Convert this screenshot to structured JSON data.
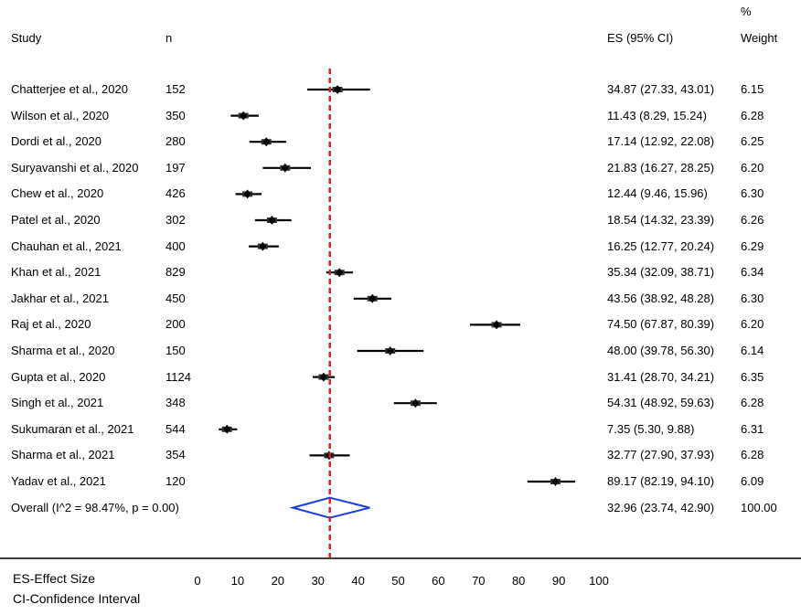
{
  "headers": {
    "study": "Study",
    "n": "n",
    "es": "ES (95% CI)",
    "weight_top": "%",
    "weight": "Weight"
  },
  "chart_data": {
    "type": "forest",
    "xlim": [
      0,
      100
    ],
    "x_ticks": [
      "0",
      "10",
      "20",
      "30",
      "40",
      "50",
      "60",
      "70",
      "80",
      "90",
      "100"
    ],
    "reference_line": 32.96,
    "studies": [
      {
        "label": "Chatterjee et al., 2020",
        "n": "152",
        "es": 34.87,
        "lo": 27.33,
        "hi": 43.01,
        "es_text": "34.87 (27.33, 43.01)",
        "weight": "6.15"
      },
      {
        "label": "Wilson et al., 2020",
        "n": "350",
        "es": 11.43,
        "lo": 8.29,
        "hi": 15.24,
        "es_text": "11.43 (8.29, 15.24)",
        "weight": "6.28"
      },
      {
        "label": "Dordi et al., 2020",
        "n": "280",
        "es": 17.14,
        "lo": 12.92,
        "hi": 22.08,
        "es_text": "17.14 (12.92, 22.08)",
        "weight": "6.25"
      },
      {
        "label": "Suryavanshi et al., 2020",
        "n": "197",
        "es": 21.83,
        "lo": 16.27,
        "hi": 28.25,
        "es_text": "21.83 (16.27, 28.25)",
        "weight": "6.20"
      },
      {
        "label": "Chew et al., 2020",
        "n": "426",
        "es": 12.44,
        "lo": 9.46,
        "hi": 15.96,
        "es_text": "12.44 (9.46, 15.96)",
        "weight": "6.30"
      },
      {
        "label": "Patel et al., 2020",
        "n": "302",
        "es": 18.54,
        "lo": 14.32,
        "hi": 23.39,
        "es_text": "18.54 (14.32, 23.39)",
        "weight": "6.26"
      },
      {
        "label": "Chauhan et al., 2021",
        "n": "400",
        "es": 16.25,
        "lo": 12.77,
        "hi": 20.24,
        "es_text": "16.25 (12.77, 20.24)",
        "weight": "6.29"
      },
      {
        "label": "Khan et al., 2021",
        "n": "829",
        "es": 35.34,
        "lo": 32.09,
        "hi": 38.71,
        "es_text": "35.34 (32.09, 38.71)",
        "weight": "6.34"
      },
      {
        "label": "Jakhar et al., 2021",
        "n": "450",
        "es": 43.56,
        "lo": 38.92,
        "hi": 48.28,
        "es_text": "43.56 (38.92, 48.28)",
        "weight": "6.30"
      },
      {
        "label": "Raj et al., 2020",
        "n": "200",
        "es": 74.5,
        "lo": 67.87,
        "hi": 80.39,
        "es_text": "74.50 (67.87, 80.39)",
        "weight": "6.20"
      },
      {
        "label": "Sharma et al., 2020",
        "n": "150",
        "es": 48.0,
        "lo": 39.78,
        "hi": 56.3,
        "es_text": "48.00 (39.78, 56.30)",
        "weight": "6.14"
      },
      {
        "label": "Gupta et al., 2020",
        "n": "1124",
        "es": 31.41,
        "lo": 28.7,
        "hi": 34.21,
        "es_text": "31.41 (28.70, 34.21)",
        "weight": "6.35"
      },
      {
        "label": "Singh et al., 2021",
        "n": "348",
        "es": 54.31,
        "lo": 48.92,
        "hi": 59.63,
        "es_text": "54.31 (48.92, 59.63)",
        "weight": "6.28"
      },
      {
        "label": "Sukumaran et al., 2021",
        "n": "544",
        "es": 7.35,
        "lo": 5.3,
        "hi": 9.88,
        "es_text": "7.35 (5.30, 9.88)",
        "weight": "6.31"
      },
      {
        "label": "Sharma et al., 2021",
        "n": "354",
        "es": 32.77,
        "lo": 27.9,
        "hi": 37.93,
        "es_text": "32.77 (27.90, 37.93)",
        "weight": "6.28"
      },
      {
        "label": "Yadav et al., 2021",
        "n": "120",
        "es": 89.17,
        "lo": 82.19,
        "hi": 94.1,
        "es_text": "89.17 (82.19, 94.10)",
        "weight": "6.09"
      }
    ],
    "overall": {
      "label": "Overall  (I^2 = 98.47%, p = 0.00)",
      "es": 32.96,
      "lo": 23.74,
      "hi": 42.9,
      "es_text": "32.96 (23.74, 42.90)",
      "weight": "100.00"
    }
  },
  "footnotes": {
    "es": "ES-Effect Size",
    "ci": "CI-Confidence Interval"
  },
  "colors": {
    "reference_line": "#e02020",
    "diamond": "#1a3fe0",
    "marker": "#000000"
  }
}
